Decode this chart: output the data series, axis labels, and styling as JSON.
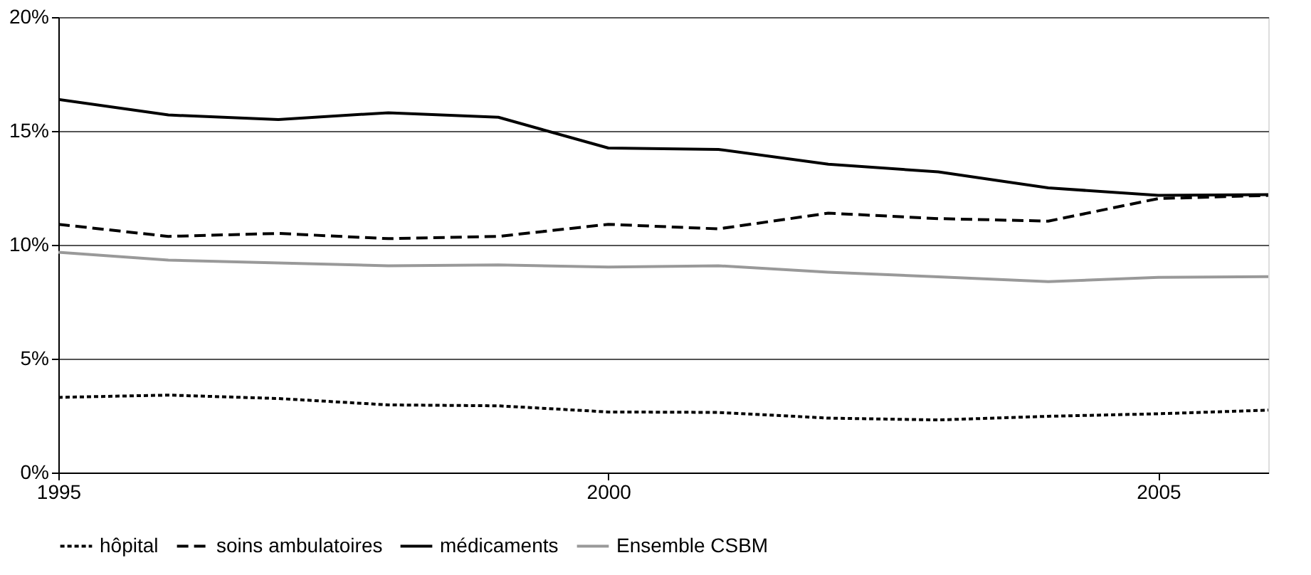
{
  "chart_data": {
    "type": "line",
    "x": [
      1995,
      1996,
      1997,
      1998,
      1999,
      2000,
      2001,
      2002,
      2003,
      2004,
      2005,
      2006
    ],
    "series": [
      {
        "name": "hôpital",
        "color": "#000000",
        "line_style": "dotted",
        "values": [
          3.3,
          3.4,
          3.25,
          2.97,
          2.93,
          2.66,
          2.64,
          2.39,
          2.31,
          2.47,
          2.58,
          2.74
        ]
      },
      {
        "name": "soins ambulatoires",
        "color": "#000000",
        "line_style": "dashed",
        "values": [
          10.9,
          10.37,
          10.5,
          10.27,
          10.37,
          10.9,
          10.7,
          11.39,
          11.15,
          11.04,
          12.03,
          12.17
        ]
      },
      {
        "name": "médicaments",
        "color": "#000000",
        "line_style": "solid",
        "values": [
          16.38,
          15.7,
          15.5,
          15.8,
          15.6,
          14.25,
          14.19,
          13.54,
          13.2,
          12.5,
          12.17,
          12.2
        ]
      },
      {
        "name": "Ensemble CSBM",
        "color": "#999999",
        "line_style": "solid",
        "values": [
          9.67,
          9.33,
          9.2,
          9.08,
          9.12,
          9.02,
          9.08,
          8.8,
          8.59,
          8.38,
          8.57,
          8.6
        ]
      }
    ],
    "xlim": [
      1995,
      2006
    ],
    "xticks": [
      1995,
      2000,
      2005
    ],
    "ylim": [
      0,
      20
    ],
    "yticks": [
      {
        "value": 0,
        "label": "0%"
      },
      {
        "value": 5,
        "label": "5%"
      },
      {
        "value": 10,
        "label": "10%"
      },
      {
        "value": 15,
        "label": "15%"
      },
      {
        "value": 20,
        "label": "20%"
      }
    ],
    "grid": "y",
    "legend": "bottom"
  }
}
